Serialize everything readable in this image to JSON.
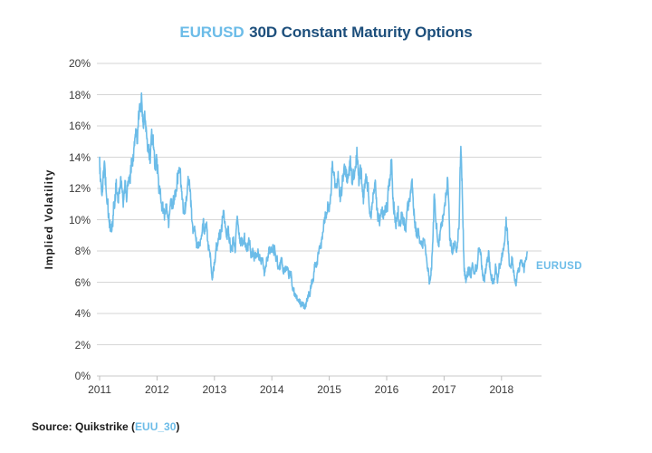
{
  "title": {
    "symbol": "EURUSD",
    "rest": "30D Constant Maturity Options"
  },
  "source": {
    "prefix": "Source: Quikstrike (",
    "link": "EUU_30",
    "suffix": ")"
  },
  "colors": {
    "accent_blue": "#6CBCE8",
    "navy": "#1D4F7C",
    "gridline": "#D6D6D6",
    "axis_line": "#C9C9C9",
    "tick_mark": "#BDBDBD",
    "tick_text": "#3B3B3B",
    "text_dark": "#1B1B1B"
  },
  "chart_data": {
    "type": "line",
    "title": "EURUSD 30D Constant Maturity Options",
    "xlabel": "",
    "ylabel": "Implied Volatility",
    "ylim": [
      0,
      20
    ],
    "xlim": [
      2011,
      2018.75
    ],
    "grid": "horizontal",
    "legend_position": "right-of-line-end",
    "y_ticks": [
      "0%",
      "2%",
      "4%",
      "6%",
      "8%",
      "10%",
      "12%",
      "14%",
      "16%",
      "18%",
      "20%"
    ],
    "x_ticks": [
      "2011",
      "2012",
      "2013",
      "2014",
      "2015",
      "2016",
      "2017",
      "2018"
    ],
    "series": [
      {
        "name": "EURUSD",
        "color": "#6CBCE8",
        "unit": "percent implied volatility",
        "points": [
          [
            2011.0,
            14.0
          ],
          [
            2011.02,
            12.3
          ],
          [
            2011.05,
            11.2
          ],
          [
            2011.08,
            13.4
          ],
          [
            2011.11,
            12.5
          ],
          [
            2011.14,
            11.3
          ],
          [
            2011.17,
            9.9
          ],
          [
            2011.2,
            9.4
          ],
          [
            2011.23,
            9.8
          ],
          [
            2011.26,
            10.9
          ],
          [
            2011.29,
            12.6
          ],
          [
            2011.32,
            11.3
          ],
          [
            2011.35,
            12.0
          ],
          [
            2011.38,
            12.3
          ],
          [
            2011.41,
            11.1
          ],
          [
            2011.44,
            12.2
          ],
          [
            2011.47,
            11.4
          ],
          [
            2011.5,
            11.7
          ],
          [
            2011.53,
            12.1
          ],
          [
            2011.56,
            13.3
          ],
          [
            2011.6,
            14.8
          ],
          [
            2011.63,
            16.1
          ],
          [
            2011.65,
            15.2
          ],
          [
            2011.68,
            16.4
          ],
          [
            2011.71,
            17.3
          ],
          [
            2011.73,
            18.5
          ],
          [
            2011.75,
            17.0
          ],
          [
            2011.77,
            16.3
          ],
          [
            2011.79,
            17.4
          ],
          [
            2011.82,
            15.6
          ],
          [
            2011.85,
            14.3
          ],
          [
            2011.88,
            13.9
          ],
          [
            2011.91,
            14.9
          ],
          [
            2011.94,
            14.4
          ],
          [
            2011.97,
            13.9
          ],
          [
            2012.0,
            13.4
          ],
          [
            2012.04,
            12.2
          ],
          [
            2012.08,
            11.3
          ],
          [
            2012.12,
            10.5
          ],
          [
            2012.16,
            11.0
          ],
          [
            2012.2,
            10.2
          ],
          [
            2012.24,
            10.7
          ],
          [
            2012.28,
            11.4
          ],
          [
            2012.32,
            12.1
          ],
          [
            2012.36,
            12.7
          ],
          [
            2012.4,
            13.3
          ],
          [
            2012.44,
            11.2
          ],
          [
            2012.48,
            9.9
          ],
          [
            2012.52,
            11.2
          ],
          [
            2012.56,
            12.3
          ],
          [
            2012.6,
            10.3
          ],
          [
            2012.64,
            9.3
          ],
          [
            2012.68,
            8.7
          ],
          [
            2012.72,
            8.3
          ],
          [
            2012.76,
            8.7
          ],
          [
            2012.8,
            9.3
          ],
          [
            2012.84,
            9.6
          ],
          [
            2012.88,
            8.8
          ],
          [
            2012.92,
            7.8
          ],
          [
            2012.96,
            6.7
          ],
          [
            2013.0,
            7.0
          ],
          [
            2013.04,
            8.1
          ],
          [
            2013.08,
            8.9
          ],
          [
            2013.12,
            9.4
          ],
          [
            2013.16,
            10.4
          ],
          [
            2013.2,
            8.9
          ],
          [
            2013.24,
            9.4
          ],
          [
            2013.28,
            8.7
          ],
          [
            2013.32,
            9.2
          ],
          [
            2013.36,
            8.5
          ],
          [
            2013.4,
            10.3
          ],
          [
            2013.44,
            9.0
          ],
          [
            2013.48,
            8.4
          ],
          [
            2013.52,
            8.8
          ],
          [
            2013.56,
            8.0
          ],
          [
            2013.6,
            8.4
          ],
          [
            2013.64,
            7.7
          ],
          [
            2013.68,
            8.1
          ],
          [
            2013.72,
            7.3
          ],
          [
            2013.76,
            7.8
          ],
          [
            2013.8,
            7.1
          ],
          [
            2013.84,
            7.6
          ],
          [
            2013.88,
            7.0
          ],
          [
            2013.92,
            7.7
          ],
          [
            2013.96,
            8.2
          ],
          [
            2014.0,
            7.8
          ],
          [
            2014.04,
            8.4
          ],
          [
            2014.08,
            7.6
          ],
          [
            2014.12,
            7.0
          ],
          [
            2014.16,
            7.4
          ],
          [
            2014.2,
            6.7
          ],
          [
            2014.25,
            7.1
          ],
          [
            2014.3,
            6.4
          ],
          [
            2014.35,
            6.0
          ],
          [
            2014.4,
            5.4
          ],
          [
            2014.45,
            5.1
          ],
          [
            2014.5,
            4.7
          ],
          [
            2014.54,
            4.4
          ],
          [
            2014.58,
            4.5
          ],
          [
            2014.62,
            4.8
          ],
          [
            2014.66,
            5.3
          ],
          [
            2014.7,
            6.1
          ],
          [
            2014.74,
            6.7
          ],
          [
            2014.78,
            7.3
          ],
          [
            2014.82,
            8.1
          ],
          [
            2014.86,
            8.8
          ],
          [
            2014.9,
            9.5
          ],
          [
            2014.94,
            10.0
          ],
          [
            2014.98,
            10.8
          ],
          [
            2015.02,
            12.0
          ],
          [
            2015.05,
            13.6
          ],
          [
            2015.08,
            12.9
          ],
          [
            2015.12,
            11.6
          ],
          [
            2015.16,
            12.5
          ],
          [
            2015.2,
            11.2
          ],
          [
            2015.24,
            12.7
          ],
          [
            2015.28,
            13.4
          ],
          [
            2015.32,
            12.1
          ],
          [
            2015.36,
            13.6
          ],
          [
            2015.4,
            12.4
          ],
          [
            2015.44,
            13.0
          ],
          [
            2015.48,
            14.1
          ],
          [
            2015.52,
            12.4
          ],
          [
            2015.56,
            13.3
          ],
          [
            2015.6,
            11.4
          ],
          [
            2015.64,
            12.6
          ],
          [
            2015.68,
            11.6
          ],
          [
            2015.72,
            10.6
          ],
          [
            2015.76,
            11.6
          ],
          [
            2015.8,
            12.3
          ],
          [
            2015.84,
            10.9
          ],
          [
            2015.88,
            9.9
          ],
          [
            2015.92,
            10.6
          ],
          [
            2015.96,
            11.0
          ],
          [
            2016.0,
            11.3
          ],
          [
            2016.04,
            12.2
          ],
          [
            2016.08,
            13.5
          ],
          [
            2016.12,
            11.2
          ],
          [
            2016.16,
            10.2
          ],
          [
            2016.2,
            10.8
          ],
          [
            2016.24,
            9.7
          ],
          [
            2016.28,
            10.4
          ],
          [
            2016.32,
            9.5
          ],
          [
            2016.36,
            10.6
          ],
          [
            2016.4,
            12.1
          ],
          [
            2016.44,
            12.9
          ],
          [
            2016.48,
            10.4
          ],
          [
            2016.52,
            8.6
          ],
          [
            2016.56,
            9.0
          ],
          [
            2016.6,
            8.0
          ],
          [
            2016.64,
            8.7
          ],
          [
            2016.68,
            7.6
          ],
          [
            2016.72,
            6.7
          ],
          [
            2016.76,
            6.0
          ],
          [
            2016.8,
            8.0
          ],
          [
            2016.83,
            12.2
          ],
          [
            2016.86,
            9.8
          ],
          [
            2016.9,
            8.6
          ],
          [
            2016.94,
            9.4
          ],
          [
            2016.98,
            10.0
          ],
          [
            2017.02,
            10.8
          ],
          [
            2017.06,
            12.2
          ],
          [
            2017.1,
            9.0
          ],
          [
            2017.14,
            8.2
          ],
          [
            2017.18,
            8.8
          ],
          [
            2017.22,
            8.2
          ],
          [
            2017.26,
            9.3
          ],
          [
            2017.29,
            15.5
          ],
          [
            2017.32,
            11.5
          ],
          [
            2017.35,
            6.9
          ],
          [
            2017.38,
            5.9
          ],
          [
            2017.42,
            7.0
          ],
          [
            2017.46,
            6.4
          ],
          [
            2017.5,
            7.3
          ],
          [
            2017.54,
            6.6
          ],
          [
            2017.58,
            7.4
          ],
          [
            2017.62,
            8.3
          ],
          [
            2017.66,
            7.0
          ],
          [
            2017.7,
            6.0
          ],
          [
            2017.74,
            6.8
          ],
          [
            2017.78,
            7.4
          ],
          [
            2017.82,
            6.4
          ],
          [
            2017.86,
            5.9
          ],
          [
            2017.9,
            7.0
          ],
          [
            2017.93,
            5.5
          ],
          [
            2017.96,
            6.6
          ],
          [
            2018.0,
            7.3
          ],
          [
            2018.04,
            8.1
          ],
          [
            2018.08,
            9.3
          ],
          [
            2018.12,
            8.0
          ],
          [
            2018.15,
            6.5
          ],
          [
            2018.18,
            7.2
          ],
          [
            2018.22,
            6.4
          ],
          [
            2018.26,
            5.8
          ],
          [
            2018.3,
            7.0
          ],
          [
            2018.34,
            7.7
          ],
          [
            2018.38,
            7.1
          ],
          [
            2018.42,
            7.4
          ],
          [
            2018.45,
            7.8
          ]
        ]
      }
    ],
    "series_label": "EURUSD"
  }
}
